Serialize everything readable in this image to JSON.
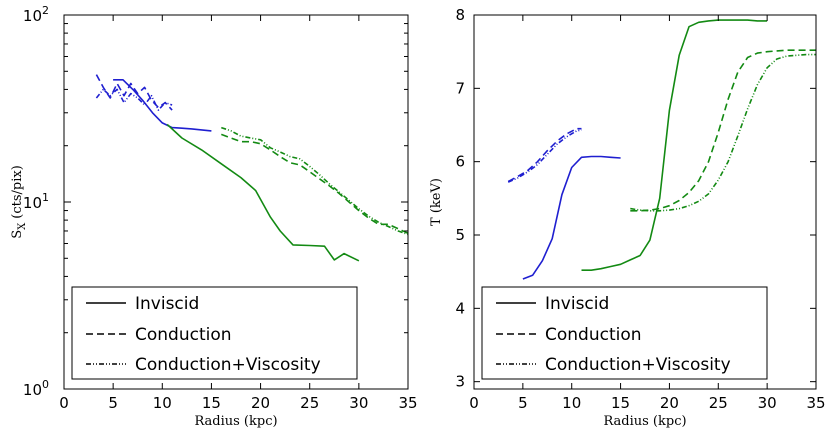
{
  "colors": {
    "blue": "#1f1fd0",
    "green": "#138a13"
  },
  "legend_styles": [
    {
      "name": "inviscid",
      "dash": ""
    },
    {
      "name": "conduction",
      "dash": "7,4"
    },
    {
      "name": "conduction-viscosity",
      "dash": "5,2,1,2,1,2"
    }
  ],
  "chart_data": [
    {
      "type": "line",
      "id": "sx",
      "xlabel": "Radius (kpc)",
      "ylabel": "S",
      "ylabel_sub": "X",
      "ylabel_units": "(cts/pix)",
      "xlim": [
        0,
        35
      ],
      "ylim": [
        1,
        100
      ],
      "yscale": "log",
      "xticks": [
        "0",
        "5",
        "10",
        "15",
        "20",
        "25",
        "30",
        "35"
      ],
      "yticks": [
        {
          "base": "10",
          "exp": "0",
          "value": 1
        },
        {
          "base": "10",
          "exp": "1",
          "value": 10
        },
        {
          "base": "10",
          "exp": "2",
          "value": 100
        }
      ],
      "legend": [
        "Inviscid",
        "Conduction",
        "Conduction+Viscosity"
      ],
      "legend_position": "lower-left",
      "series": [
        {
          "name": "Inviscid",
          "group": "inner",
          "color": "blue",
          "style": "solid",
          "x": [
            5.0,
            6.0,
            7.0,
            8.0,
            9.0,
            10.0,
            11.0,
            12.0,
            13.0,
            14.0,
            15.0
          ],
          "y": [
            45,
            45,
            40,
            35,
            30,
            26.5,
            25,
            24.8,
            24.6,
            24.3,
            24.0
          ]
        },
        {
          "name": "Conduction",
          "group": "inner",
          "color": "blue",
          "style": "dashed",
          "x": [
            3.3,
            4.0,
            4.7,
            5.4,
            6.1,
            6.8,
            7.5,
            8.2,
            8.9,
            9.6,
            10.3,
            11.0
          ],
          "y": [
            48,
            41,
            36,
            43,
            37,
            43,
            38,
            41,
            35,
            32,
            34,
            31
          ]
        },
        {
          "name": "Conduction+Viscosity",
          "group": "inner",
          "color": "blue",
          "style": "dashdot",
          "x": [
            3.3,
            4.0,
            4.7,
            5.4,
            6.1,
            6.8,
            7.5,
            8.2,
            8.9,
            9.6,
            10.3,
            11.0
          ],
          "y": [
            36,
            40,
            37,
            40,
            34,
            38,
            36,
            33,
            37,
            31,
            34,
            33
          ]
        },
        {
          "name": "Inviscid",
          "group": "outer",
          "color": "green",
          "style": "solid",
          "x": [
            10.5,
            12,
            14,
            16,
            18,
            19.5,
            21,
            22,
            23.3,
            25,
            26.5,
            27.5,
            28.5,
            30
          ],
          "y": [
            26,
            22,
            19,
            16,
            13.5,
            11.5,
            8.3,
            7.0,
            5.9,
            5.85,
            5.8,
            4.9,
            5.3,
            4.85
          ]
        },
        {
          "name": "Conduction",
          "group": "outer",
          "color": "green",
          "style": "dashed",
          "x": [
            16,
            17,
            18,
            19,
            20,
            21,
            22,
            23,
            24,
            25,
            26,
            27,
            28,
            29,
            30,
            31,
            32,
            33,
            34,
            35
          ],
          "y": [
            23,
            22,
            21,
            21,
            20.5,
            19,
            17.5,
            16.2,
            15.8,
            14.5,
            13.3,
            12.2,
            11.1,
            10.0,
            9.0,
            8.2,
            7.6,
            7.6,
            7.2,
            6.8
          ]
        },
        {
          "name": "Conduction+Viscosity",
          "group": "outer",
          "color": "green",
          "style": "dashdot",
          "x": [
            16,
            17,
            18,
            19,
            20,
            21,
            22,
            23,
            24,
            25,
            26,
            27,
            28,
            29,
            30,
            31,
            32,
            33,
            34,
            35
          ],
          "y": [
            25,
            24,
            22.5,
            22,
            21.5,
            19.5,
            18.5,
            17.5,
            17,
            15.5,
            14,
            12.5,
            11.3,
            10.2,
            9.2,
            8.4,
            7.8,
            7.4,
            7.0,
            6.7
          ]
        }
      ]
    },
    {
      "type": "line",
      "id": "temp",
      "xlabel": "Radius (kpc)",
      "ylabel": "T (keV)",
      "xlim": [
        0,
        35
      ],
      "ylim": [
        2.9,
        8.0
      ],
      "yscale": "linear",
      "xticks": [
        "0",
        "5",
        "10",
        "15",
        "20",
        "25",
        "30",
        "35"
      ],
      "yticks": [
        "3",
        "4",
        "5",
        "6",
        "7",
        "8"
      ],
      "legend": [
        "Inviscid",
        "Conduction",
        "Conduction+Viscosity"
      ],
      "legend_position": "lower-left",
      "series": [
        {
          "name": "Inviscid",
          "group": "inner",
          "color": "blue",
          "style": "solid",
          "x": [
            5.0,
            6.0,
            7.0,
            8.0,
            9.0,
            10.0,
            11.0,
            12.0,
            13.0,
            14.0,
            15.0
          ],
          "y": [
            4.4,
            4.45,
            4.65,
            4.95,
            5.55,
            5.92,
            6.06,
            6.07,
            6.07,
            6.06,
            6.05
          ]
        },
        {
          "name": "Conduction",
          "group": "inner",
          "color": "blue",
          "style": "dashed",
          "x": [
            3.5,
            4.5,
            5.5,
            6.5,
            7.5,
            8.5,
            9.5,
            10.5,
            11.0
          ],
          "y": [
            5.73,
            5.8,
            5.88,
            6.0,
            6.15,
            6.28,
            6.38,
            6.45,
            6.45
          ]
        },
        {
          "name": "Conduction+Viscosity",
          "group": "inner",
          "color": "blue",
          "style": "dashdot",
          "x": [
            3.5,
            4.5,
            5.5,
            6.5,
            7.5,
            8.5,
            9.5,
            10.5,
            11.0
          ],
          "y": [
            5.72,
            5.78,
            5.86,
            5.96,
            6.1,
            6.24,
            6.34,
            6.42,
            6.43
          ]
        },
        {
          "name": "Inviscid",
          "group": "outer",
          "color": "green",
          "style": "solid",
          "x": [
            11,
            12,
            13,
            14,
            15,
            16,
            17,
            18,
            19,
            20,
            21,
            22,
            23,
            24,
            25,
            26,
            27,
            28,
            29,
            30
          ],
          "y": [
            4.52,
            4.52,
            4.54,
            4.57,
            4.6,
            4.66,
            4.72,
            4.93,
            5.5,
            6.7,
            7.45,
            7.84,
            7.9,
            7.92,
            7.93,
            7.93,
            7.93,
            7.93,
            7.92,
            7.92
          ]
        },
        {
          "name": "Conduction",
          "group": "outer",
          "color": "green",
          "style": "dashed",
          "x": [
            16,
            17,
            18,
            19,
            20,
            21,
            22,
            23,
            24,
            25,
            26,
            27,
            28,
            29,
            30,
            31,
            32,
            33,
            34,
            35
          ],
          "y": [
            5.33,
            5.33,
            5.34,
            5.36,
            5.4,
            5.47,
            5.58,
            5.74,
            6.0,
            6.4,
            6.85,
            7.22,
            7.42,
            7.48,
            7.5,
            7.51,
            7.52,
            7.52,
            7.52,
            7.52
          ]
        },
        {
          "name": "Conduction+Viscosity",
          "group": "outer",
          "color": "green",
          "style": "dashdot",
          "x": [
            16,
            17,
            18,
            19,
            20,
            21,
            22,
            23,
            24,
            25,
            26,
            27,
            28,
            29,
            30,
            31,
            32,
            33,
            34,
            35
          ],
          "y": [
            5.36,
            5.34,
            5.33,
            5.33,
            5.34,
            5.36,
            5.4,
            5.46,
            5.56,
            5.75,
            6.0,
            6.35,
            6.72,
            7.05,
            7.28,
            7.4,
            7.44,
            7.45,
            7.46,
            7.46
          ]
        }
      ]
    }
  ]
}
